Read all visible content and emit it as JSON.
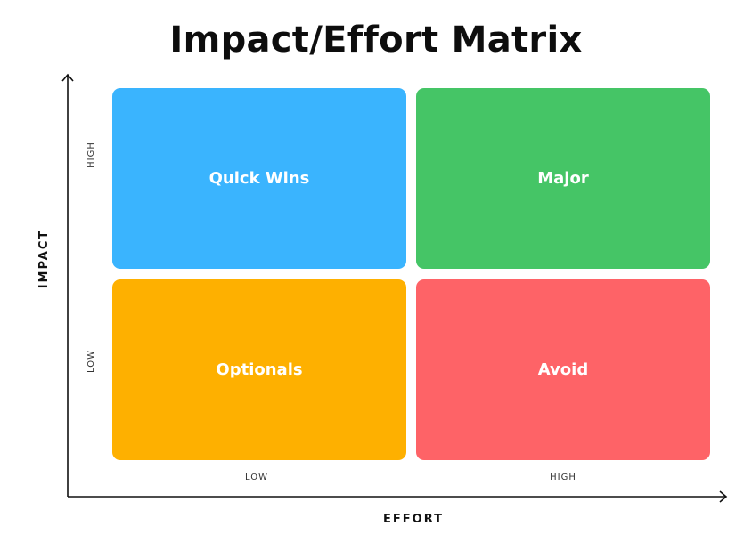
{
  "title": "Impact/Effort Matrix",
  "axes": {
    "x_label": "EFFORT",
    "y_label": "IMPACT",
    "x_ticks": {
      "low": "LOW",
      "high": "HIGH"
    },
    "y_ticks": {
      "low": "LOW",
      "high": "HIGH"
    }
  },
  "quadrants": {
    "top_left": {
      "label": "Quick Wins",
      "color": "#3AB4FE"
    },
    "top_right": {
      "label": "Major",
      "color": "#45C566"
    },
    "bottom_left": {
      "label": "Optionals",
      "color": "#FEB000"
    },
    "bottom_right": {
      "label": "Avoid",
      "color": "#FE6367"
    }
  },
  "axis_color": "#111111"
}
